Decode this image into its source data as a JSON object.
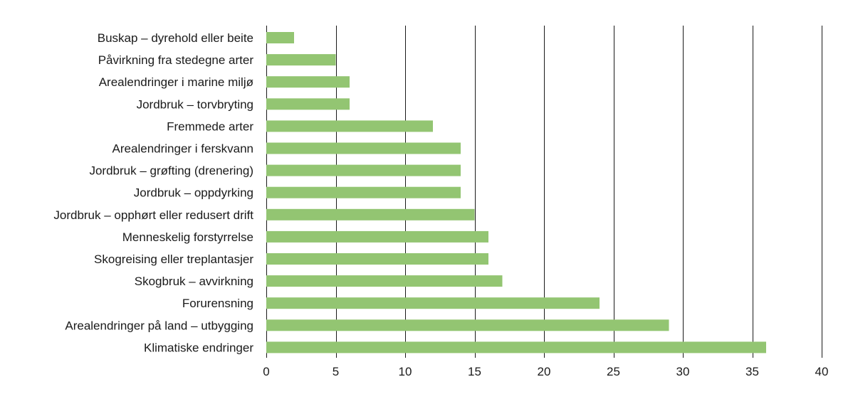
{
  "chart_data": {
    "type": "bar",
    "orientation": "horizontal",
    "title": "",
    "xlabel": "",
    "ylabel": "",
    "categories": [
      "Buskap – dyrehold eller beite",
      "Påvirkning fra stedegne arter",
      "Arealendringer i marine miljø",
      "Jordbruk – torvbryting",
      "Fremmede arter",
      "Arealendringer i ferskvann",
      "Jordbruk – grøfting (drenering)",
      "Jordbruk – oppdyrking",
      "Jordbruk – opphørt eller redusert drift",
      "Menneskelig forstyrrelse",
      "Skogreising eller treplantasjer",
      "Skogbruk – avvirkning",
      "Forurensning",
      "Arealendringer på land – utbygging",
      "Klimatiske endringer"
    ],
    "values": [
      2,
      5,
      6,
      6,
      12,
      14,
      14,
      14,
      15,
      16,
      16,
      17,
      24,
      29,
      36
    ],
    "xlim": [
      0,
      40
    ],
    "xticks": [
      "0",
      "5",
      "10",
      "15",
      "20",
      "25",
      "30",
      "35",
      "40"
    ],
    "grid": "vertical",
    "legend": "none",
    "bar_color": "#93c572",
    "grid_color": "#1a1a1a",
    "text_color": "#1a1a1a"
  }
}
